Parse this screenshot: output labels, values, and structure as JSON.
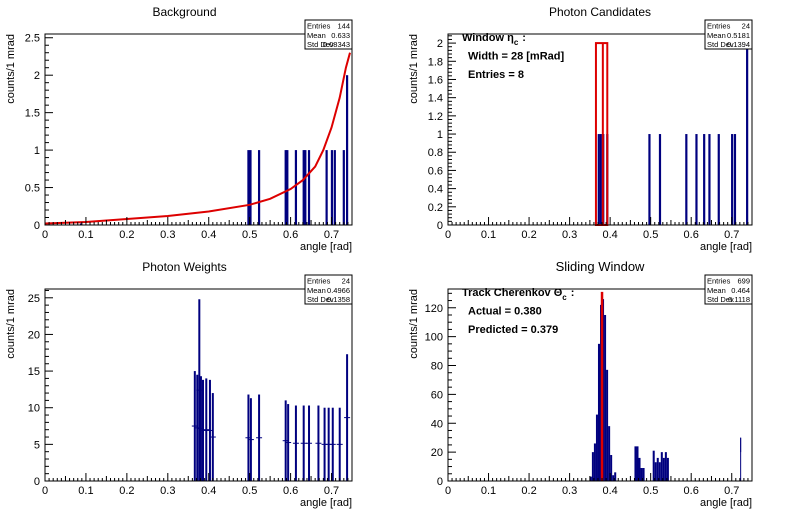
{
  "chart_data": [
    {
      "id": "background",
      "type": "bar",
      "title": "Background",
      "xlabel": "angle [rad]",
      "ylabel": "counts/1 mrad",
      "xlim": [
        0,
        0.75
      ],
      "ylim": [
        0,
        2.55
      ],
      "x_ticks": [
        "0",
        "0.1",
        "0.2",
        "0.3",
        "0.4",
        "0.5",
        "0.6",
        "0.7"
      ],
      "y_ticks": [
        "0",
        "0.5",
        "1",
        "1.5",
        "2",
        "2.5"
      ],
      "stats": {
        "labels": [
          "Entries",
          "Mean",
          "Std Dev"
        ],
        "values": [
          "144",
          "0.633",
          "0.08343"
        ]
      },
      "colors": {
        "bars": "#00007f",
        "curve": "#dd0000"
      },
      "bars": [
        {
          "x": 0.088,
          "y": 0.02
        },
        {
          "x": 0.497,
          "y": 1
        },
        {
          "x": 0.502,
          "y": 1
        },
        {
          "x": 0.523,
          "y": 1
        },
        {
          "x": 0.588,
          "y": 1
        },
        {
          "x": 0.592,
          "y": 1
        },
        {
          "x": 0.613,
          "y": 1
        },
        {
          "x": 0.632,
          "y": 1
        },
        {
          "x": 0.636,
          "y": 1
        },
        {
          "x": 0.645,
          "y": 1
        },
        {
          "x": 0.688,
          "y": 1
        },
        {
          "x": 0.701,
          "y": 1
        },
        {
          "x": 0.708,
          "y": 1
        },
        {
          "x": 0.73,
          "y": 1
        },
        {
          "x": 0.738,
          "y": 2
        }
      ],
      "curve": [
        {
          "x": 0,
          "y": 0.02
        },
        {
          "x": 0.1,
          "y": 0.04
        },
        {
          "x": 0.2,
          "y": 0.08
        },
        {
          "x": 0.3,
          "y": 0.12
        },
        {
          "x": 0.4,
          "y": 0.18
        },
        {
          "x": 0.5,
          "y": 0.27
        },
        {
          "x": 0.55,
          "y": 0.35
        },
        {
          "x": 0.6,
          "y": 0.48
        },
        {
          "x": 0.63,
          "y": 0.6
        },
        {
          "x": 0.66,
          "y": 0.78
        },
        {
          "x": 0.68,
          "y": 1.0
        },
        {
          "x": 0.7,
          "y": 1.3
        },
        {
          "x": 0.72,
          "y": 1.7
        },
        {
          "x": 0.735,
          "y": 2.1
        },
        {
          "x": 0.745,
          "y": 2.3
        }
      ]
    },
    {
      "id": "candidates",
      "type": "bar",
      "title": "Photon Candidates",
      "xlabel": "angle [rad]",
      "ylabel": "counts/1 mrad",
      "xlim": [
        0,
        0.75
      ],
      "ylim": [
        0,
        2.1
      ],
      "x_ticks": [
        "0",
        "0.1",
        "0.2",
        "0.3",
        "0.4",
        "0.5",
        "0.6",
        "0.7"
      ],
      "y_ticks": [
        "0",
        "0.2",
        "0.4",
        "0.6",
        "0.8",
        "1",
        "1.2",
        "1.4",
        "1.6",
        "1.8",
        "2"
      ],
      "stats": {
        "labels": [
          "Entries",
          "Mean",
          "Std Dev"
        ],
        "values": [
          "24",
          "0.5181",
          "0.1394"
        ]
      },
      "colors": {
        "bars": "#00007f",
        "window": "#dd0000"
      },
      "window": {
        "x_min": 0.365,
        "x_max": 0.393,
        "height": 2,
        "split_at": 0.382
      },
      "annotations": [
        {
          "main": "Window  η",
          "sub": "c",
          "tail": ":"
        },
        {
          "main": "Width = 28 [mRad]"
        },
        {
          "main": "Entries = 8"
        }
      ],
      "bars": [
        {
          "x": 0.372,
          "y": 1
        },
        {
          "x": 0.377,
          "y": 1
        },
        {
          "x": 0.383,
          "y": 1
        },
        {
          "x": 0.393,
          "y": 1
        },
        {
          "x": 0.497,
          "y": 1
        },
        {
          "x": 0.523,
          "y": 1
        },
        {
          "x": 0.588,
          "y": 1
        },
        {
          "x": 0.613,
          "y": 1
        },
        {
          "x": 0.632,
          "y": 1
        },
        {
          "x": 0.645,
          "y": 1
        },
        {
          "x": 0.668,
          "y": 1
        },
        {
          "x": 0.701,
          "y": 1
        },
        {
          "x": 0.708,
          "y": 1
        },
        {
          "x": 0.738,
          "y": 2
        }
      ]
    },
    {
      "id": "weights",
      "type": "bar",
      "title": "Photon Weights",
      "xlabel": "angle [rad]",
      "ylabel": "counts/1 mrad",
      "xlim": [
        0,
        0.75
      ],
      "ylim": [
        0,
        26.2
      ],
      "x_ticks": [
        "0",
        "0.1",
        "0.2",
        "0.3",
        "0.4",
        "0.5",
        "0.6",
        "0.7"
      ],
      "y_ticks": [
        "0",
        "5",
        "10",
        "15",
        "20",
        "25"
      ],
      "stats": {
        "labels": [
          "Entries",
          "Mean",
          "Std Dev"
        ],
        "values": [
          "24",
          "0.4966",
          "0.1358"
        ]
      },
      "colors": {
        "bars": "#00007f"
      },
      "bars": [
        {
          "x": 0.366,
          "y": 15
        },
        {
          "x": 0.372,
          "y": 14.5
        },
        {
          "x": 0.377,
          "y": 24.8
        },
        {
          "x": 0.381,
          "y": 14.3
        },
        {
          "x": 0.386,
          "y": 13.8
        },
        {
          "x": 0.394,
          "y": 14
        },
        {
          "x": 0.403,
          "y": 13.8
        },
        {
          "x": 0.41,
          "y": 12
        },
        {
          "x": 0.497,
          "y": 11.8
        },
        {
          "x": 0.503,
          "y": 11.3
        },
        {
          "x": 0.523,
          "y": 11.8
        },
        {
          "x": 0.588,
          "y": 11
        },
        {
          "x": 0.594,
          "y": 10.5
        },
        {
          "x": 0.613,
          "y": 10.3
        },
        {
          "x": 0.632,
          "y": 10.3
        },
        {
          "x": 0.645,
          "y": 10.3
        },
        {
          "x": 0.668,
          "y": 10.3
        },
        {
          "x": 0.683,
          "y": 10
        },
        {
          "x": 0.693,
          "y": 10
        },
        {
          "x": 0.703,
          "y": 10
        },
        {
          "x": 0.72,
          "y": 10
        },
        {
          "x": 0.738,
          "y": 17.3
        }
      ]
    },
    {
      "id": "sliding",
      "type": "bar",
      "title": "Sliding Window",
      "xlabel": "angle [rad]",
      "ylabel": "counts/1 mrad",
      "xlim": [
        0,
        0.75
      ],
      "ylim": [
        0,
        133
      ],
      "x_ticks": [
        "0",
        "0.1",
        "0.2",
        "0.3",
        "0.4",
        "0.5",
        "0.6",
        "0.7"
      ],
      "y_ticks": [
        "0",
        "20",
        "40",
        "60",
        "80",
        "100",
        "120"
      ],
      "stats": {
        "labels": [
          "Entries",
          "Mean",
          "Std Dev"
        ],
        "values": [
          "699",
          "0.464",
          "0.1118"
        ]
      },
      "colors": {
        "bars": "#00007f",
        "marker": "#dd0000"
      },
      "marker_x": 0.38,
      "annotations": [
        {
          "main": "Track Cherenkov  Θ",
          "sub": "c",
          "tail": ":"
        },
        {
          "main": "Actual = 0.380"
        },
        {
          "main": "Predicted = 0.379"
        }
      ],
      "bins": {
        "start": 0.35,
        "width": 0.005,
        "values": [
          3,
          20,
          26,
          46,
          95,
          122,
          126,
          115,
          77,
          38,
          18,
          4,
          6,
          0,
          0,
          0,
          0,
          0,
          0,
          0,
          0,
          0,
          24,
          24,
          16,
          9,
          9,
          0,
          0,
          0,
          0,
          21,
          13,
          16,
          13,
          20,
          16,
          20,
          16,
          0
        ]
      }
    }
  ]
}
